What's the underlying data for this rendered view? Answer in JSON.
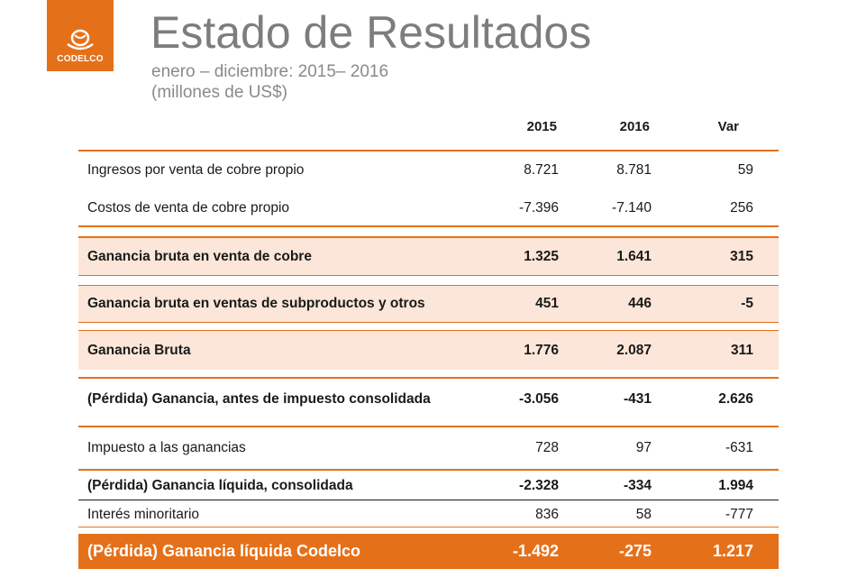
{
  "logo": {
    "brand": "CODELCO"
  },
  "header": {
    "title": "Estado de Resultados",
    "subtitle_period": "enero – diciembre: 2015– 2016",
    "subtitle_units": "(millones de US$)"
  },
  "table": {
    "columns": [
      "2015",
      "2016",
      "Var"
    ],
    "rows": [
      {
        "label": "Ingresos por venta de cobre propio",
        "v2015": "8.721",
        "v2016": "8.781",
        "var": "59"
      },
      {
        "label": "Costos de venta de cobre propio",
        "v2015": "-7.396",
        "v2016": "-7.140",
        "var": "256"
      },
      {
        "label": "Ganancia bruta en venta de cobre",
        "v2015": "1.325",
        "v2016": "1.641",
        "var": "315"
      },
      {
        "label": "Ganancia bruta en ventas de  subproductos y otros",
        "v2015": "451",
        "v2016": "446",
        "var": "-5"
      },
      {
        "label": "Ganancia Bruta",
        "v2015": "1.776",
        "v2016": "2.087",
        "var": "311"
      },
      {
        "label": "(Pérdida) Ganancia, antes de impuesto consolidada",
        "v2015": "-3.056",
        "v2016": "-431",
        "var": "2.626"
      },
      {
        "label": "Impuesto a las ganancias",
        "v2015": "728",
        "v2016": "97",
        "var": "-631"
      },
      {
        "label": "(Pérdida) Ganancia líquida, consolidada",
        "v2015": "-2.328",
        "v2016": "-334",
        "var": "1.994"
      },
      {
        "label": "Interés minoritario",
        "v2015": "836",
        "v2016": "58",
        "var": "-777"
      },
      {
        "label": "(Pérdida) Ganancia líquida Codelco",
        "v2015": "-1.492",
        "v2016": "-275",
        "var": "1.217"
      }
    ]
  },
  "colors": {
    "accent": "#e5701a",
    "shade": "#fbe6d9",
    "title_gray": "#7d7d7d"
  }
}
